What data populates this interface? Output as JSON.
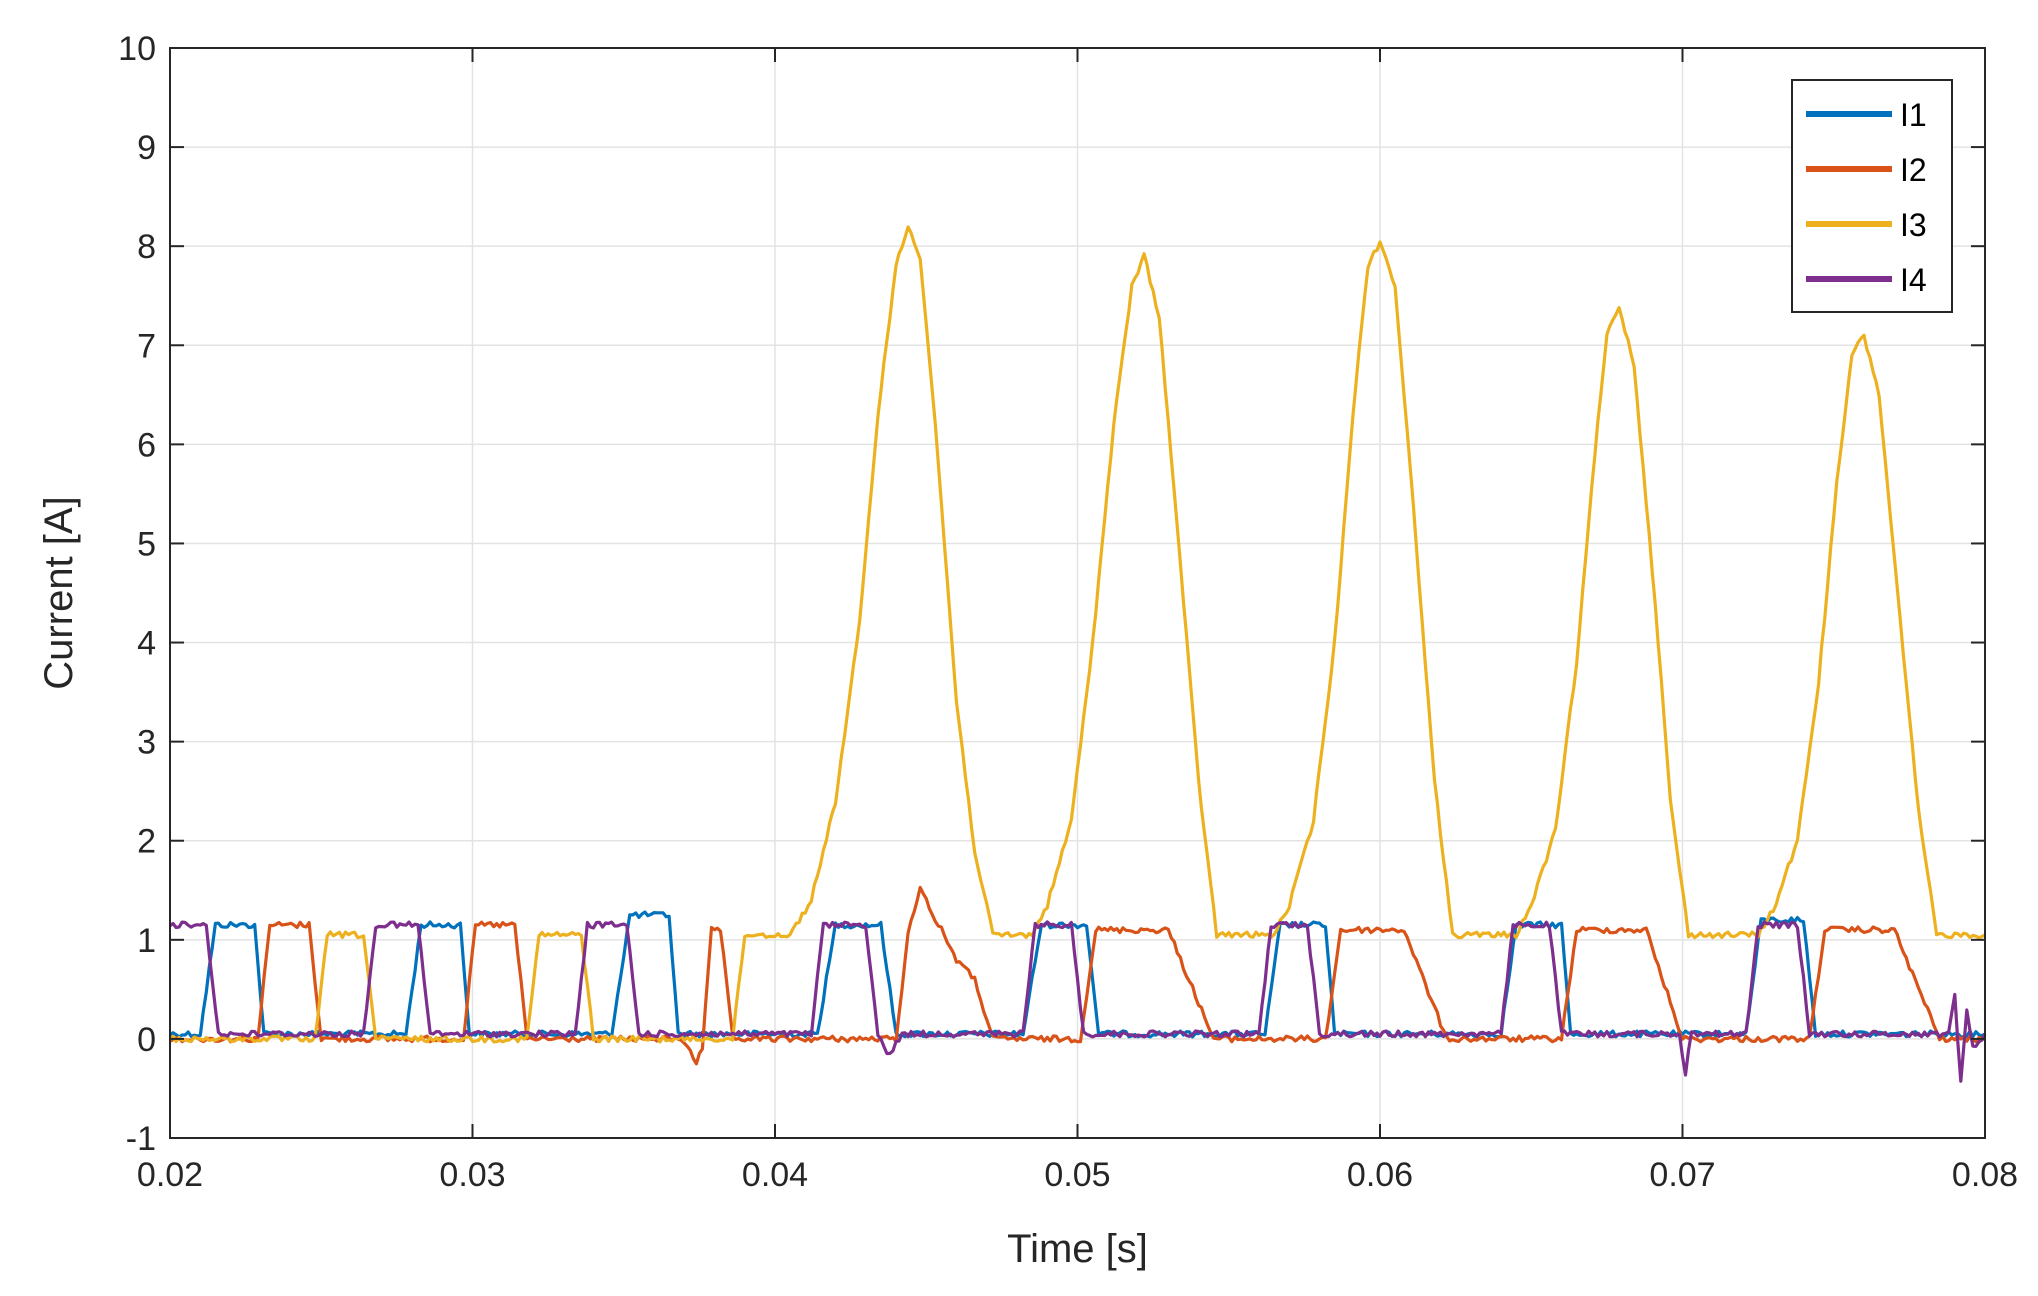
{
  "chart_data": {
    "type": "line",
    "title": "",
    "xlabel": "Time [s]",
    "ylabel": "Current [A]",
    "xlim": [
      0.02,
      0.08
    ],
    "ylim": [
      -1,
      10
    ],
    "xticks": [
      0.02,
      0.03,
      0.04,
      0.05,
      0.06,
      0.07,
      0.08
    ],
    "xtick_labels": [
      "0.02",
      "0.03",
      "0.04",
      "0.05",
      "0.06",
      "0.07",
      "0.08"
    ],
    "yticks": [
      -1,
      0,
      1,
      2,
      3,
      4,
      5,
      6,
      7,
      8,
      9,
      10
    ],
    "ytick_labels": [
      "-1",
      "0",
      "1",
      "2",
      "3",
      "4",
      "5",
      "6",
      "7",
      "8",
      "9",
      "10"
    ],
    "grid": true,
    "legend": {
      "position": "top-right",
      "entries": [
        "I1",
        "I2",
        "I3",
        "I4"
      ]
    },
    "series": [
      {
        "name": "I1",
        "color": "#0072BD",
        "x": [
          0.02,
          0.021,
          0.0215,
          0.0228,
          0.0231,
          0.0278,
          0.0283,
          0.0296,
          0.0299,
          0.0346,
          0.0352,
          0.0365,
          0.0368,
          0.0414,
          0.042,
          0.0435,
          0.044,
          0.0482,
          0.0488,
          0.0503,
          0.0507,
          0.0562,
          0.0567,
          0.0582,
          0.0585,
          0.064,
          0.0645,
          0.066,
          0.0663,
          0.0721,
          0.0726,
          0.074,
          0.0744,
          0.08
        ],
        "y": [
          0.05,
          0.05,
          1.15,
          1.15,
          0.05,
          0.05,
          1.15,
          1.15,
          0.05,
          0.05,
          1.25,
          1.25,
          0.05,
          0.05,
          1.15,
          1.15,
          0.05,
          0.05,
          1.15,
          1.15,
          0.05,
          0.05,
          1.15,
          1.15,
          0.05,
          0.05,
          1.15,
          1.15,
          0.05,
          0.05,
          1.2,
          1.2,
          0.05,
          0.05
        ]
      },
      {
        "name": "I2",
        "color": "#D95319",
        "x": [
          0.02,
          0.0229,
          0.0233,
          0.0246,
          0.025,
          0.0297,
          0.0301,
          0.0314,
          0.0318,
          0.0365,
          0.0369,
          0.0372,
          0.0374,
          0.0376,
          0.0379,
          0.0382,
          0.0386,
          0.044,
          0.0444,
          0.0448,
          0.0452,
          0.0456,
          0.046,
          0.0466,
          0.0472,
          0.0501,
          0.0506,
          0.053,
          0.0545,
          0.0582,
          0.0587,
          0.0608,
          0.0622,
          0.066,
          0.0665,
          0.0688,
          0.07,
          0.0742,
          0.0747,
          0.077,
          0.0785,
          0.08
        ],
        "y": [
          0.0,
          0.0,
          1.15,
          1.15,
          0.0,
          0.0,
          1.15,
          1.15,
          0.0,
          0.0,
          0.0,
          -0.1,
          -0.25,
          -0.1,
          1.1,
          1.1,
          0.0,
          0.0,
          1.05,
          1.55,
          1.25,
          1.05,
          0.8,
          0.6,
          0.0,
          0.0,
          1.1,
          1.1,
          0.0,
          0.0,
          1.1,
          1.1,
          0.0,
          0.0,
          1.1,
          1.1,
          0.0,
          0.0,
          1.1,
          1.1,
          0.0,
          0.0
        ]
      },
      {
        "name": "I3",
        "color": "#EDB120",
        "x": [
          0.02,
          0.0248,
          0.0252,
          0.0264,
          0.0268,
          0.0318,
          0.0322,
          0.0336,
          0.034,
          0.0386,
          0.039,
          0.0405,
          0.0412,
          0.042,
          0.0428,
          0.0434,
          0.044,
          0.0444,
          0.0448,
          0.0453,
          0.046,
          0.0466,
          0.0472,
          0.0485,
          0.049,
          0.0498,
          0.0505,
          0.0512,
          0.0518,
          0.0522,
          0.0527,
          0.0534,
          0.054,
          0.0546,
          0.0565,
          0.057,
          0.0578,
          0.0585,
          0.0591,
          0.0596,
          0.06,
          0.0605,
          0.0612,
          0.0618,
          0.0624,
          0.0645,
          0.065,
          0.0658,
          0.0665,
          0.0671,
          0.0675,
          0.0679,
          0.0684,
          0.0691,
          0.0696,
          0.0702,
          0.0725,
          0.073,
          0.0738,
          0.0745,
          0.0751,
          0.0756,
          0.076,
          0.0765,
          0.0772,
          0.0778,
          0.0784,
          0.08
        ],
        "y": [
          0.0,
          0.0,
          1.05,
          1.05,
          0.0,
          0.0,
          1.05,
          1.05,
          0.0,
          0.0,
          1.05,
          1.05,
          1.4,
          2.4,
          4.2,
          6.3,
          7.8,
          8.2,
          7.9,
          6.2,
          3.4,
          1.9,
          1.05,
          1.05,
          1.35,
          2.2,
          4.0,
          6.2,
          7.6,
          7.9,
          7.3,
          4.8,
          2.6,
          1.05,
          1.05,
          1.35,
          2.2,
          4.0,
          6.3,
          7.8,
          8.05,
          7.6,
          5.0,
          2.6,
          1.05,
          1.05,
          1.35,
          2.1,
          3.8,
          5.9,
          7.1,
          7.4,
          6.8,
          4.4,
          2.4,
          1.05,
          1.05,
          1.3,
          2.0,
          3.6,
          5.6,
          6.9,
          7.1,
          6.5,
          4.2,
          2.3,
          1.05,
          1.05
        ]
      },
      {
        "name": "I4",
        "color": "#7E2F8E",
        "x": [
          0.02,
          0.0212,
          0.0216,
          0.0264,
          0.0268,
          0.0282,
          0.0286,
          0.0334,
          0.0338,
          0.0351,
          0.0355,
          0.0412,
          0.0416,
          0.043,
          0.0434,
          0.0436,
          0.0438,
          0.044,
          0.0442,
          0.0482,
          0.0486,
          0.0498,
          0.0502,
          0.056,
          0.0564,
          0.0576,
          0.058,
          0.064,
          0.0644,
          0.0656,
          0.066,
          0.0699,
          0.0701,
          0.0703,
          0.0705,
          0.0721,
          0.0725,
          0.0738,
          0.0742,
          0.0788,
          0.079,
          0.0792,
          0.0794,
          0.0796,
          0.08
        ],
        "y": [
          1.15,
          1.15,
          0.05,
          0.05,
          1.15,
          1.15,
          0.05,
          0.05,
          1.15,
          1.15,
          0.05,
          0.05,
          1.15,
          1.15,
          0.05,
          -0.1,
          -0.15,
          -0.05,
          0.05,
          0.05,
          1.15,
          1.15,
          0.05,
          0.05,
          1.15,
          1.15,
          0.05,
          0.05,
          1.15,
          1.15,
          0.05,
          0.05,
          -0.35,
          0.1,
          0.05,
          0.05,
          1.15,
          1.15,
          0.05,
          0.05,
          0.45,
          -0.45,
          0.3,
          -0.1,
          0.05
        ]
      }
    ]
  }
}
